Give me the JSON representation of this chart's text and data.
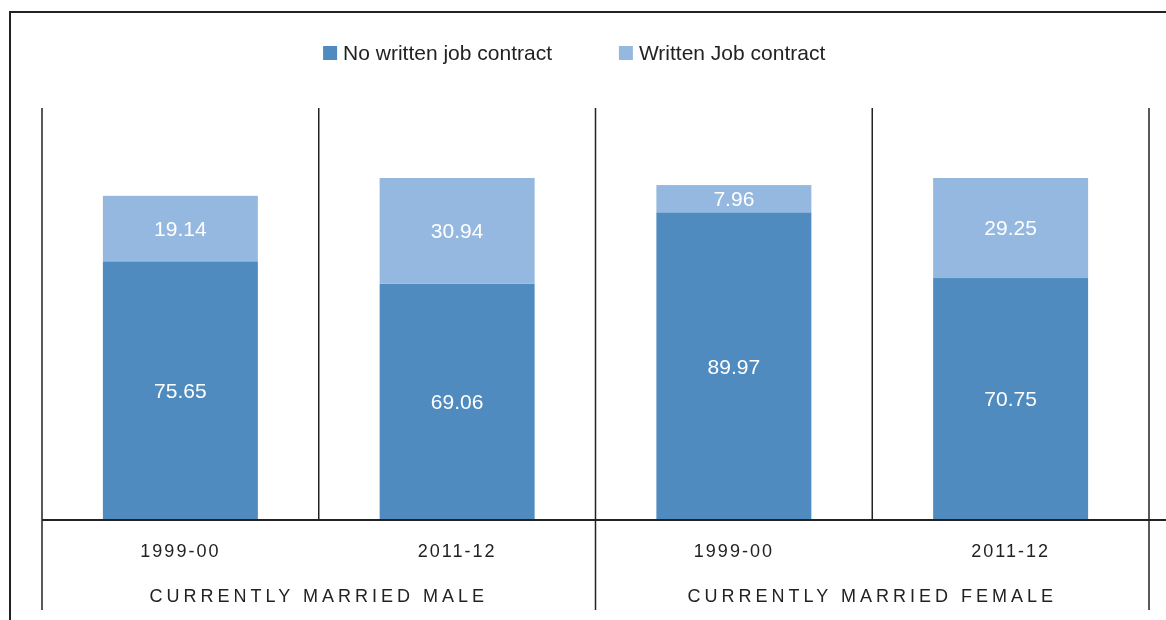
{
  "chart_data": {
    "type": "bar",
    "stacked": true,
    "data_labels": true,
    "legend": "top",
    "categories": [
      "1999-00",
      "2011-12",
      "1999-00",
      "2011-12"
    ],
    "series": [
      {
        "name": "No written job contract",
        "color": "#4f8bbf",
        "values": [
          75.65,
          69.06,
          89.97,
          70.75
        ]
      },
      {
        "name": "Written Job contract",
        "color": "#95b8e0",
        "values": [
          19.14,
          30.94,
          7.96,
          29.25
        ]
      }
    ],
    "annotations": [
      "CURRENTLY MARRIED MALE",
      "CURRENTLY MARRIED FEMALE"
    ]
  }
}
